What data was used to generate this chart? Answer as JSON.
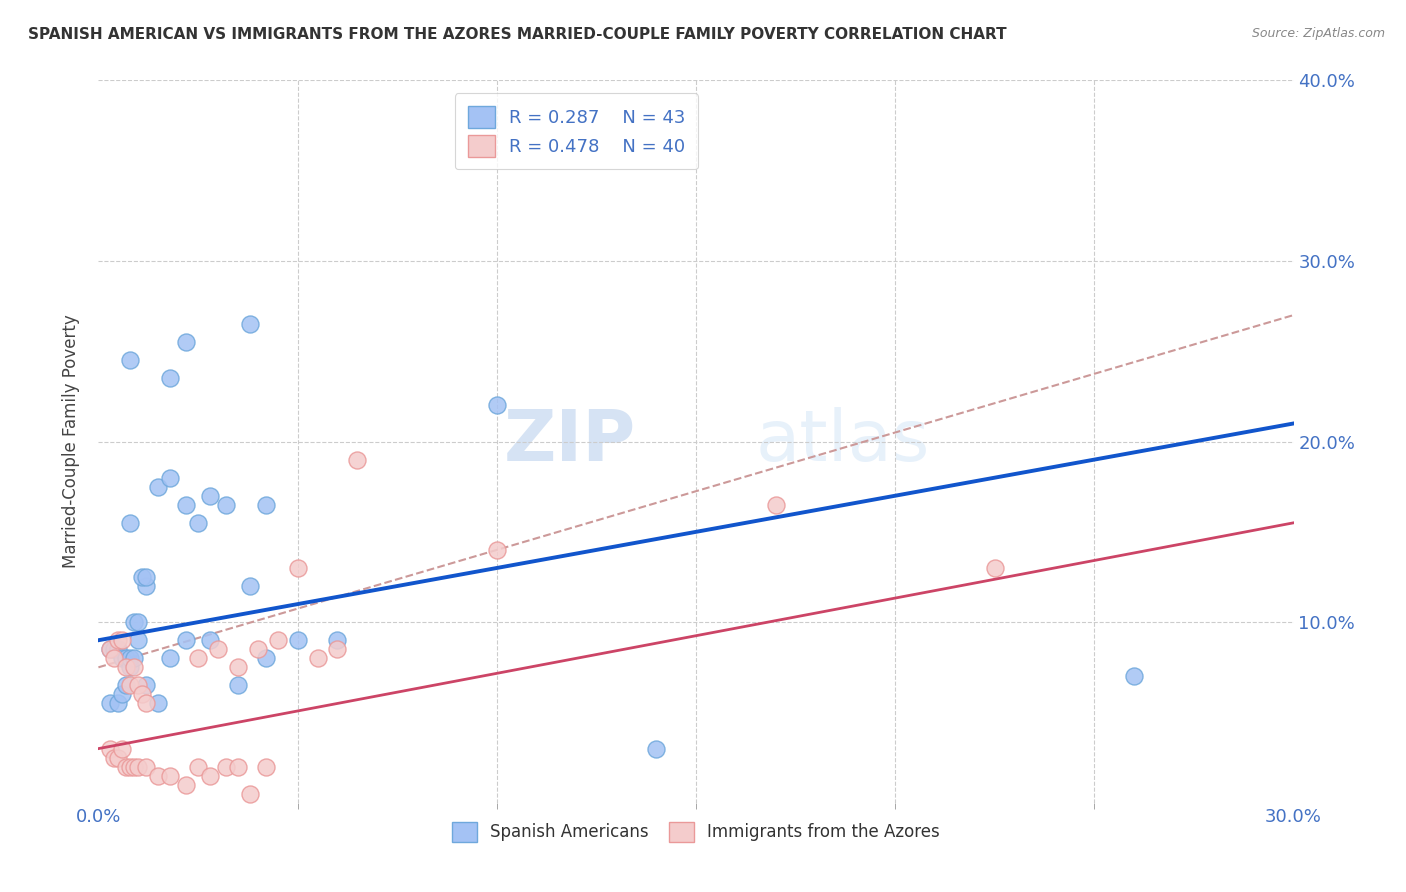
{
  "title": "SPANISH AMERICAN VS IMMIGRANTS FROM THE AZORES MARRIED-COUPLE FAMILY POVERTY CORRELATION CHART",
  "source": "Source: ZipAtlas.com",
  "ylabel": "Married-Couple Family Poverty",
  "xlim": [
    0.0,
    0.3
  ],
  "ylim": [
    0.0,
    0.4
  ],
  "xticks": [
    0.0,
    0.3
  ],
  "yticks": [
    0.1,
    0.2,
    0.3,
    0.4
  ],
  "xtick_labels": [
    "0.0%",
    "30.0%"
  ],
  "ytick_labels": [
    "10.0%",
    "20.0%",
    "30.0%",
    "40.0%"
  ],
  "blue_R": 0.287,
  "blue_N": 43,
  "pink_R": 0.478,
  "pink_N": 40,
  "blue_color": "#a4c2f4",
  "pink_color": "#f4cccc",
  "blue_scatter_edge": "#6fa8dc",
  "pink_scatter_edge": "#ea9999",
  "blue_line_color": "#1155cc",
  "pink_line_color": "#cc4466",
  "dashed_line_color": "#cc9999",
  "legend_label_blue": "Spanish Americans",
  "legend_label_pink": "Immigrants from the Azores",
  "watermark_zip": "ZIP",
  "watermark_atlas": "atlas",
  "blue_line_x0": 0.0,
  "blue_line_y0": 0.09,
  "blue_line_x1": 0.3,
  "blue_line_y1": 0.21,
  "pink_line_x0": 0.0,
  "pink_line_y0": 0.03,
  "pink_line_x1": 0.3,
  "pink_line_y1": 0.155,
  "dashed_line_x0": 0.0,
  "dashed_line_y0": 0.075,
  "dashed_line_x1": 0.3,
  "dashed_line_y1": 0.27,
  "blue_scatter_x": [
    0.008,
    0.018,
    0.022,
    0.038,
    0.008,
    0.012,
    0.015,
    0.018,
    0.022,
    0.025,
    0.028,
    0.032,
    0.038,
    0.042,
    0.003,
    0.004,
    0.005,
    0.006,
    0.007,
    0.008,
    0.009,
    0.01,
    0.011,
    0.012,
    0.003,
    0.005,
    0.006,
    0.007,
    0.008,
    0.009,
    0.01,
    0.012,
    0.015,
    0.018,
    0.022,
    0.028,
    0.035,
    0.042,
    0.05,
    0.06,
    0.1,
    0.26,
    0.14
  ],
  "blue_scatter_y": [
    0.245,
    0.235,
    0.255,
    0.265,
    0.155,
    0.12,
    0.175,
    0.18,
    0.165,
    0.155,
    0.17,
    0.165,
    0.12,
    0.165,
    0.085,
    0.085,
    0.085,
    0.08,
    0.08,
    0.075,
    0.1,
    0.1,
    0.125,
    0.125,
    0.055,
    0.055,
    0.06,
    0.065,
    0.08,
    0.08,
    0.09,
    0.065,
    0.055,
    0.08,
    0.09,
    0.09,
    0.065,
    0.08,
    0.09,
    0.09,
    0.22,
    0.07,
    0.03
  ],
  "pink_scatter_x": [
    0.003,
    0.004,
    0.005,
    0.006,
    0.007,
    0.008,
    0.009,
    0.01,
    0.011,
    0.012,
    0.003,
    0.004,
    0.005,
    0.006,
    0.007,
    0.008,
    0.009,
    0.01,
    0.012,
    0.015,
    0.018,
    0.022,
    0.025,
    0.028,
    0.032,
    0.035,
    0.038,
    0.042,
    0.025,
    0.03,
    0.035,
    0.04,
    0.045,
    0.05,
    0.055,
    0.06,
    0.065,
    0.1,
    0.17,
    0.225
  ],
  "pink_scatter_y": [
    0.085,
    0.08,
    0.09,
    0.09,
    0.075,
    0.065,
    0.075,
    0.065,
    0.06,
    0.055,
    0.03,
    0.025,
    0.025,
    0.03,
    0.02,
    0.02,
    0.02,
    0.02,
    0.02,
    0.015,
    0.015,
    0.01,
    0.02,
    0.015,
    0.02,
    0.02,
    0.005,
    0.02,
    0.08,
    0.085,
    0.075,
    0.085,
    0.09,
    0.13,
    0.08,
    0.085,
    0.19,
    0.14,
    0.165,
    0.13
  ]
}
